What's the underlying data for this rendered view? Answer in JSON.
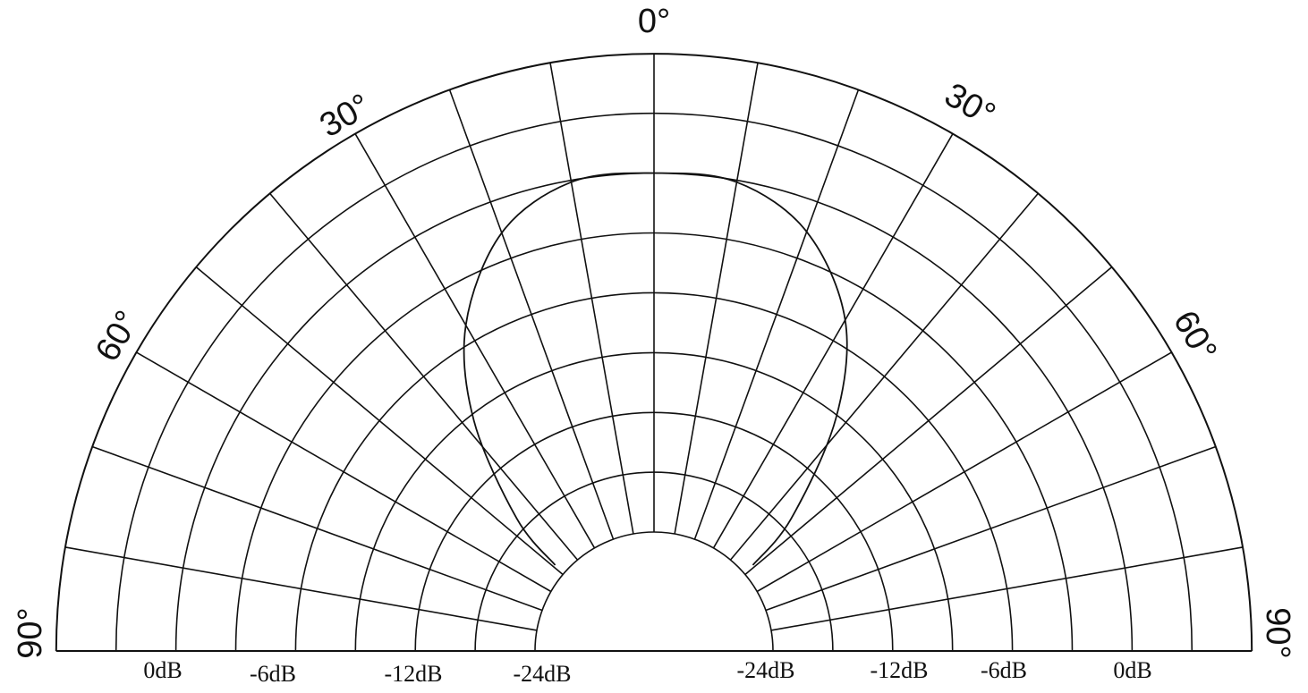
{
  "chart_data": {
    "type": "polar",
    "subtype": "half-polar directivity pattern",
    "angle_range_deg": [
      -90,
      90
    ],
    "angle_tick_labels": [
      "0°",
      "30°",
      "30°",
      "60°",
      "60°",
      "90°",
      "90°"
    ],
    "angular_grid_step_deg": 10,
    "radial_ring_count": 9,
    "radial_tick_labels_left": [
      "0dB",
      "-6dB",
      "-12dB",
      "-24dB"
    ],
    "radial_tick_labels_right": [
      "-24dB",
      "-12dB",
      "-6dB",
      "0dB"
    ],
    "grid": true,
    "line_color": "#111111",
    "series": [
      {
        "level_units": "grid rings above inner circle (outer ring = 8)",
        "points": [
          {
            "angle": -49,
            "level": 0.2
          },
          {
            "angle": -46,
            "level": 1.2
          },
          {
            "angle": -38,
            "level": 2.9
          },
          {
            "angle": -30,
            "level": 4.3
          },
          {
            "angle": -20,
            "level": 5.45
          },
          {
            "angle": -10,
            "level": 5.97
          },
          {
            "angle": 0,
            "level": 6.0
          },
          {
            "angle": 10,
            "level": 5.97
          },
          {
            "angle": 20,
            "level": 5.47
          },
          {
            "angle": 30,
            "level": 4.4
          },
          {
            "angle": 38,
            "level": 2.95
          },
          {
            "angle": 46,
            "level": 1.2
          },
          {
            "angle": 49,
            "level": 0.2
          }
        ]
      }
    ]
  }
}
